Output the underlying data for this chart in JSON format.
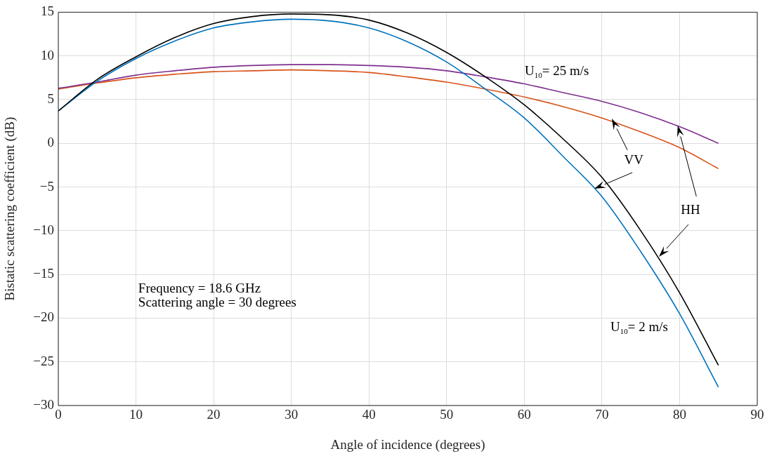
{
  "chart_data": {
    "type": "line",
    "xlabel": "Angle of incidence (degrees)",
    "ylabel": "Bistatic scattering coefficient (dB)",
    "x": [
      0,
      5,
      10,
      15,
      20,
      25,
      30,
      35,
      40,
      45,
      50,
      55,
      60,
      65,
      70,
      75,
      80,
      85
    ],
    "series": [
      {
        "color": "#000000",
        "values": [
          3.7,
          7.3,
          9.9,
          12.1,
          13.7,
          14.5,
          14.8,
          14.7,
          14.1,
          12.6,
          10.4,
          7.6,
          4.4,
          0.5,
          -3.9,
          -10.0,
          -17.1,
          -25.4
        ]
      },
      {
        "color": "#0072bd",
        "values": [
          3.7,
          7.1,
          9.7,
          11.7,
          13.2,
          13.9,
          14.2,
          14.0,
          13.2,
          11.6,
          9.3,
          6.2,
          2.9,
          -1.5,
          -6.1,
          -12.4,
          -19.5,
          -27.9
        ]
      },
      {
        "color": "#7e2f8e",
        "values": [
          6.3,
          7.0,
          7.8,
          8.3,
          8.7,
          8.9,
          9.0,
          9.0,
          8.9,
          8.7,
          8.3,
          7.6,
          6.8,
          5.8,
          4.8,
          3.5,
          1.9,
          0.0
        ]
      },
      {
        "color": "#d95319",
        "values": [
          6.2,
          6.9,
          7.5,
          7.9,
          8.2,
          8.3,
          8.4,
          8.3,
          8.1,
          7.6,
          7.0,
          6.2,
          5.3,
          4.2,
          2.9,
          1.3,
          -0.5,
          -2.9
        ]
      }
    ],
    "xlim": [
      0,
      90
    ],
    "xticks": [
      0,
      10,
      20,
      30,
      40,
      50,
      60,
      70,
      80,
      90
    ],
    "ylim": [
      -30,
      15
    ],
    "yticks": [
      {
        "value": -30,
        "label": "−30"
      },
      {
        "value": -25,
        "label": "−25"
      },
      {
        "value": -20,
        "label": "−20"
      },
      {
        "value": -15,
        "label": "−15"
      },
      {
        "value": -10,
        "label": "−10"
      },
      {
        "value": -5,
        "label": "−5"
      },
      0,
      5,
      10,
      15
    ],
    "grid": true,
    "marker": "none",
    "line_style": "solid",
    "annotations": [
      "U$_{10}$= 25 m/s",
      "U$_{10}$= 2 m/s",
      {
        "text": "VV",
        "x": 69,
        "y": -5.2
      },
      "HH",
      "Frequency = 18.6 GHz",
      "Scattering angle = 30 degrees"
    ]
  }
}
